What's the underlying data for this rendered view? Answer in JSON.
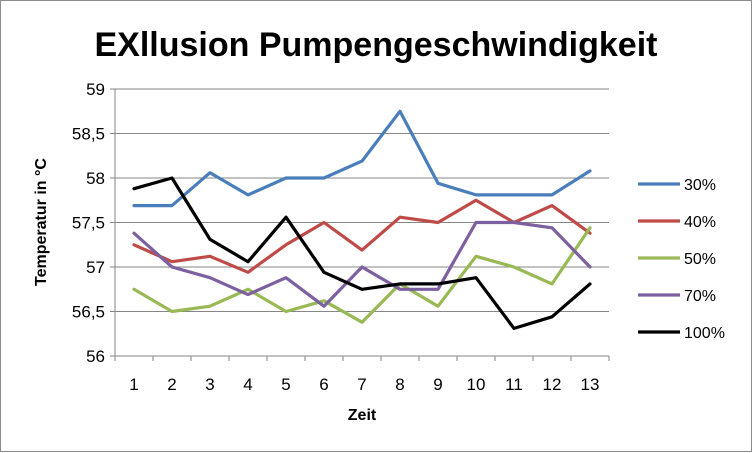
{
  "chart_data": {
    "type": "line",
    "title": "EXllusion Pumpengeschwindigkeit",
    "xlabel": "Zeit",
    "ylabel": "Temperatur in °C",
    "x": [
      1,
      2,
      3,
      4,
      5,
      6,
      7,
      8,
      9,
      10,
      11,
      12,
      13
    ],
    "x_tick_labels": [
      "1",
      "2",
      "3",
      "4",
      "5",
      "6",
      "7",
      "8",
      "9",
      "10",
      "11",
      "12",
      "13"
    ],
    "ylim": [
      56,
      59
    ],
    "y_ticks": [
      56,
      56.5,
      57,
      57.5,
      58,
      58.5,
      59
    ],
    "y_tick_labels": [
      "56",
      "56,5",
      "57",
      "57,5",
      "58",
      "58,5",
      "59"
    ],
    "grid": true,
    "legend_position": "right",
    "series": [
      {
        "name": "30%",
        "color": "#4a7ebb",
        "values": [
          57.69,
          57.69,
          58.06,
          57.81,
          58.0,
          58.0,
          58.19,
          58.75,
          57.94,
          57.81,
          57.81,
          57.81,
          58.08
        ]
      },
      {
        "name": "40%",
        "color": "#be4b48",
        "values": [
          57.25,
          57.06,
          57.12,
          56.94,
          57.25,
          57.5,
          57.19,
          57.56,
          57.5,
          57.75,
          57.5,
          57.69,
          57.38
        ]
      },
      {
        "name": "50%",
        "color": "#98b954",
        "values": [
          56.75,
          56.5,
          56.56,
          56.75,
          56.5,
          56.62,
          56.38,
          56.81,
          56.56,
          57.12,
          57.0,
          56.81,
          57.44
        ]
      },
      {
        "name": "70%",
        "color": "#7d60a0",
        "values": [
          57.38,
          57.0,
          56.88,
          56.69,
          56.88,
          56.56,
          57.0,
          56.75,
          56.75,
          57.5,
          57.5,
          57.44,
          57.0
        ]
      },
      {
        "name": "100%",
        "color": "#000000",
        "values": [
          57.88,
          58.0,
          57.31,
          57.06,
          57.56,
          56.94,
          56.75,
          56.81,
          56.81,
          56.88,
          56.31,
          56.44,
          56.81
        ]
      }
    ]
  }
}
